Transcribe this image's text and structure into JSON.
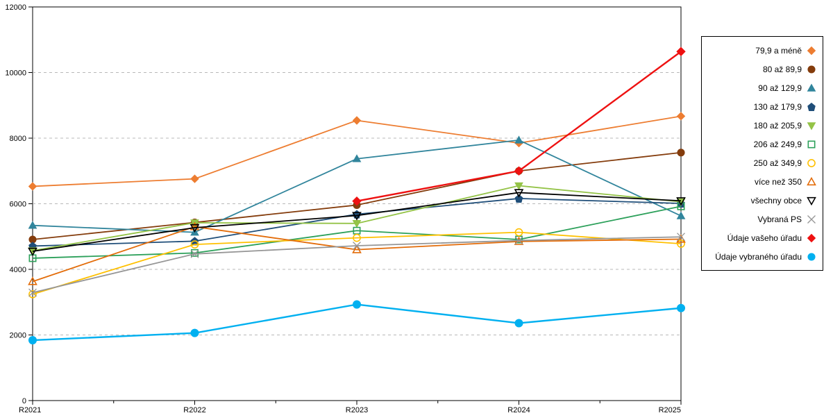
{
  "chart_data": {
    "type": "line",
    "title": "",
    "xlabel": "",
    "ylabel": "",
    "x_categories": [
      "R2021",
      "R2022",
      "R2023",
      "R2024",
      "R2025"
    ],
    "ylim": [
      0,
      12000
    ],
    "yticks": [
      0,
      2000,
      4000,
      6000,
      8000,
      10000,
      12000
    ],
    "grid": "horizontal-dashed",
    "legend_position": "right-outside",
    "series": [
      {
        "name": "79,9 a méně",
        "marker": "diamond",
        "filled": true,
        "color": "#ED7D31",
        "values": [
          6530,
          6760,
          8540,
          7850,
          8670
        ]
      },
      {
        "name": "80 až 89,9",
        "marker": "circle",
        "filled": true,
        "color": "#843C0C",
        "values": [
          4910,
          5430,
          5960,
          7000,
          7560
        ]
      },
      {
        "name": "90 až 129,9",
        "marker": "triangle-up",
        "filled": true,
        "color": "#31859C",
        "values": [
          5340,
          5130,
          7370,
          7940,
          5630
        ]
      },
      {
        "name": "130 až 179,9",
        "marker": "pentagon",
        "filled": true,
        "color": "#1F4E79",
        "values": [
          4710,
          4860,
          5680,
          6160,
          6010
        ]
      },
      {
        "name": "180 až 205,9",
        "marker": "triangle-down",
        "filled": true,
        "color": "#94C347",
        "values": [
          4570,
          5420,
          5400,
          6550,
          6060
        ]
      },
      {
        "name": "206 až 249,9",
        "marker": "square",
        "filled": false,
        "color": "#2CA05A",
        "values": [
          4340,
          4500,
          5180,
          4910,
          5920
        ]
      },
      {
        "name": "250 až 349,9",
        "marker": "circle",
        "filled": false,
        "color": "#FFC000",
        "values": [
          3240,
          4760,
          4960,
          5130,
          4780
        ]
      },
      {
        "name": "více než 350",
        "marker": "triangle-up",
        "filled": false,
        "color": "#E36C09",
        "values": [
          3630,
          5300,
          4600,
          4850,
          4920
        ]
      },
      {
        "name": "všechny obce",
        "marker": "triangle-down",
        "filled": false,
        "color": "#000000",
        "values": [
          4550,
          5270,
          5640,
          6340,
          6090
        ]
      },
      {
        "name": "Vybraná PS",
        "marker": "x",
        "filled": false,
        "color": "#969696",
        "values": [
          3290,
          4470,
          4720,
          4880,
          4990
        ]
      },
      {
        "name": "Údaje vašeho úřadu",
        "marker": "diamond",
        "filled": true,
        "color": "#EE1111",
        "values": [
          null,
          null,
          6080,
          7000,
          10640
        ]
      },
      {
        "name": "Údaje vybraného úřadu",
        "marker": "circle",
        "filled": true,
        "color": "#00B0F0",
        "values": [
          1840,
          2060,
          2930,
          2360,
          2820
        ]
      }
    ]
  },
  "colors": {
    "grid": "#b8b8b8",
    "axis": "#000000",
    "plot_border": "#000000"
  }
}
